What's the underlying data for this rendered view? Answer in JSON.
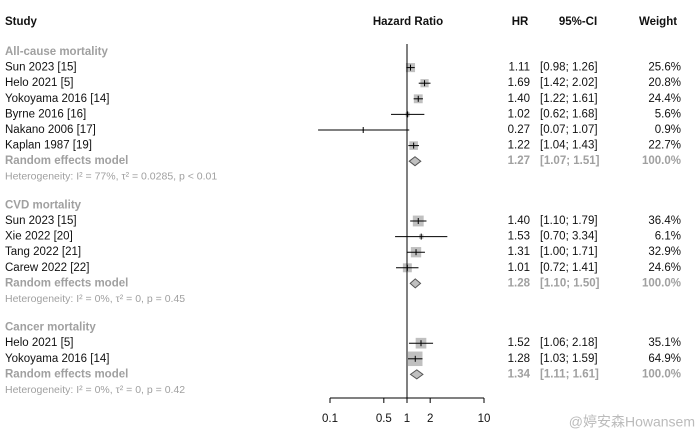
{
  "chart_data": {
    "type": "forest",
    "columns": {
      "study": "Study",
      "plot": "Hazard Ratio",
      "hr": "HR",
      "ci": "95%-CI",
      "weight": "Weight"
    },
    "log_x": true,
    "xlim": [
      0.1,
      10
    ],
    "xticks": [
      0.1,
      0.5,
      1,
      2,
      10
    ],
    "null_value": 1,
    "square_color": "#c0c0c0",
    "diamond_color": "#c0c0c0",
    "summary_text_color": "#a0a0a0",
    "groups": [
      {
        "title": "All-cause mortality",
        "studies": [
          {
            "name": "Sun 2023 [15]",
            "hr": 1.11,
            "ci_low": 0.98,
            "ci_high": 1.26,
            "weight": 25.6,
            "hr_label": "1.11",
            "ci_label": "[0.98; 1.26]",
            "weight_label": "25.6%"
          },
          {
            "name": "Helo 2021 [5]",
            "hr": 1.69,
            "ci_low": 1.42,
            "ci_high": 2.02,
            "weight": 20.8,
            "hr_label": "1.69",
            "ci_label": "[1.42; 2.02]",
            "weight_label": "20.8%"
          },
          {
            "name": "Yokoyama 2016 [14]",
            "hr": 1.4,
            "ci_low": 1.22,
            "ci_high": 1.61,
            "weight": 24.4,
            "hr_label": "1.40",
            "ci_label": "[1.22; 1.61]",
            "weight_label": "24.4%"
          },
          {
            "name": "Byrne 2016 [16]",
            "hr": 1.02,
            "ci_low": 0.62,
            "ci_high": 1.68,
            "weight": 5.6,
            "hr_label": "1.02",
            "ci_label": "[0.62; 1.68]",
            "weight_label": "5.6%"
          },
          {
            "name": "Nakano 2006 [17]",
            "hr": 0.27,
            "ci_low": 0.07,
            "ci_high": 1.07,
            "weight": 0.9,
            "hr_label": "0.27",
            "ci_label": "[0.07; 1.07]",
            "weight_label": "0.9%"
          },
          {
            "name": "Kaplan 1987 [19]",
            "hr": 1.22,
            "ci_low": 1.04,
            "ci_high": 1.43,
            "weight": 22.7,
            "hr_label": "1.22",
            "ci_label": "[1.04; 1.43]",
            "weight_label": "22.7%"
          }
        ],
        "model": {
          "name": "Random effects model",
          "hr": 1.27,
          "ci_low": 1.07,
          "ci_high": 1.51,
          "weight": 100,
          "hr_label": "1.27",
          "ci_label": "[1.07; 1.51]",
          "weight_label": "100.0%"
        },
        "heterogeneity": "Heterogeneity: I² = 77%, τ² = 0.0285, p < 0.01"
      },
      {
        "title": "CVD mortality",
        "studies": [
          {
            "name": "Sun 2023 [15]",
            "hr": 1.4,
            "ci_low": 1.1,
            "ci_high": 1.79,
            "weight": 36.4,
            "hr_label": "1.40",
            "ci_label": "[1.10; 1.79]",
            "weight_label": "36.4%"
          },
          {
            "name": "Xie 2022 [20]",
            "hr": 1.53,
            "ci_low": 0.7,
            "ci_high": 3.34,
            "weight": 6.1,
            "hr_label": "1.53",
            "ci_label": "[0.70; 3.34]",
            "weight_label": "6.1%"
          },
          {
            "name": "Tang 2022 [21]",
            "hr": 1.31,
            "ci_low": 1.0,
            "ci_high": 1.71,
            "weight": 32.9,
            "hr_label": "1.31",
            "ci_label": "[1.00; 1.71]",
            "weight_label": "32.9%"
          },
          {
            "name": "Carew 2022 [22]",
            "hr": 1.01,
            "ci_low": 0.72,
            "ci_high": 1.41,
            "weight": 24.6,
            "hr_label": "1.01",
            "ci_label": "[0.72; 1.41]",
            "weight_label": "24.6%"
          }
        ],
        "model": {
          "name": "Random effects model",
          "hr": 1.28,
          "ci_low": 1.1,
          "ci_high": 1.5,
          "weight": 100,
          "hr_label": "1.28",
          "ci_label": "[1.10; 1.50]",
          "weight_label": "100.0%"
        },
        "heterogeneity": "Heterogeneity: I² = 0%, τ² = 0, p = 0.45"
      },
      {
        "title": "Cancer mortality",
        "studies": [
          {
            "name": "Helo 2021 [5]",
            "hr": 1.52,
            "ci_low": 1.06,
            "ci_high": 2.18,
            "weight": 35.1,
            "hr_label": "1.52",
            "ci_label": "[1.06; 2.18]",
            "weight_label": "35.1%"
          },
          {
            "name": "Yokoyama 2016 [14]",
            "hr": 1.28,
            "ci_low": 1.03,
            "ci_high": 1.59,
            "weight": 64.9,
            "hr_label": "1.28",
            "ci_label": "[1.03; 1.59]",
            "weight_label": "64.9%"
          }
        ],
        "model": {
          "name": "Random effects model",
          "hr": 1.34,
          "ci_low": 1.11,
          "ci_high": 1.61,
          "weight": 100,
          "hr_label": "1.34",
          "ci_label": "[1.11; 1.61]",
          "weight_label": "100.0%"
        },
        "heterogeneity": "Heterogeneity: I² = 0%, τ² = 0, p = 0.42"
      }
    ],
    "watermark": "@婷安森Howansem"
  }
}
